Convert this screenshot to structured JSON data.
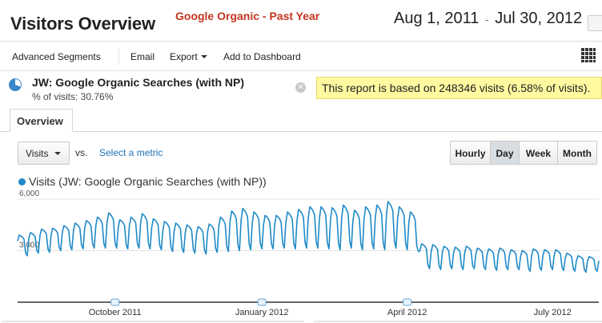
{
  "header": {
    "title": "Visitors Overview",
    "subtitle": "Google Organic - Past Year",
    "date_start": "Aug 1, 2011",
    "date_sep": "-",
    "date_end": "Jul 30, 2012"
  },
  "toolbar": {
    "advanced_segments": "Advanced Segments",
    "email": "Email",
    "export": "Export",
    "add_to_dashboard": "Add to Dashboard"
  },
  "segment": {
    "name": "JW: Google Organic Searches (with NP)",
    "pct_text": "% of visits: 30.76%"
  },
  "notice": "This report is based on 248346 visits (6.58% of visits).",
  "tabs": [
    {
      "label": "Overview",
      "active": true
    }
  ],
  "metric": {
    "selected": "Visits",
    "vs": "vs.",
    "select_metric": "Select a metric"
  },
  "granularity": {
    "options": [
      "Hourly",
      "Day",
      "Week",
      "Month"
    ],
    "active": "Day"
  },
  "colors": {
    "series": "#1f8ac7",
    "notice_bg": "#fff9a0",
    "title_accent": "#c3351e",
    "link": "#1f73b7"
  },
  "chart_data": {
    "type": "line",
    "series": [
      {
        "name": "Visits (JW: Google Organic Searches (with NP))",
        "weekly_high": [
          3900,
          4050,
          4250,
          4300,
          4450,
          4600,
          4750,
          4950,
          5200,
          4800,
          4950,
          5150,
          4850,
          4700,
          4600,
          4500,
          4400,
          4550,
          4950,
          5300,
          5450,
          5250,
          5050,
          5050,
          5250,
          5400,
          5550,
          5550,
          5500,
          5650,
          5350,
          5550,
          5650,
          5850,
          5550,
          5250,
          3400,
          3350,
          3250,
          3200,
          3250,
          3150,
          3100,
          3150,
          3050,
          3000,
          3100,
          3050,
          3050,
          2850,
          2700,
          2650
        ],
        "weekly_low": [
          2700,
          2850,
          2900,
          3000,
          3050,
          3100,
          3150,
          3150,
          3150,
          3100,
          3150,
          3100,
          3050,
          2950,
          2900,
          2850,
          2800,
          2900,
          2950,
          3000,
          3050,
          3100,
          3100,
          3150,
          3100,
          3150,
          3150,
          3100,
          3050,
          3150,
          3050,
          3100,
          3050,
          3150,
          3050,
          2950,
          1950,
          1900,
          1950,
          1900,
          1950,
          1900,
          1850,
          1900,
          1900,
          1800,
          1850,
          1900,
          1850,
          1800,
          1750,
          1800
        ]
      }
    ],
    "x_start": "2011-08-01",
    "x_end": "2012-07-30",
    "x_ticks": [
      "October 2011",
      "January 2012",
      "April 2012",
      "July 2012"
    ],
    "y_ticks": [
      "6,000",
      "3,000"
    ],
    "ylim": [
      0,
      6000
    ],
    "grid": true
  }
}
